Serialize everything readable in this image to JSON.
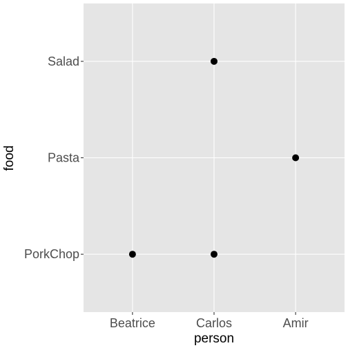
{
  "chart_data": {
    "type": "scatter",
    "xlabel": "person",
    "ylabel": "food",
    "x_categories": [
      "Beatrice",
      "Carlos",
      "Amir"
    ],
    "y_categories": [
      "PorkChop",
      "Pasta",
      "Salad"
    ],
    "points": [
      {
        "x": "Carlos",
        "y": "Salad"
      },
      {
        "x": "Amir",
        "y": "Pasta"
      },
      {
        "x": "Beatrice",
        "y": "PorkChop"
      },
      {
        "x": "Carlos",
        "y": "PorkChop"
      }
    ],
    "grid": true,
    "legend": "none",
    "colors": {
      "panel": "#e5e5e5",
      "grid": "#ffffff",
      "point": "#000000",
      "tick_text": "#4d4d4d",
      "tick_mark": "#333333"
    }
  }
}
